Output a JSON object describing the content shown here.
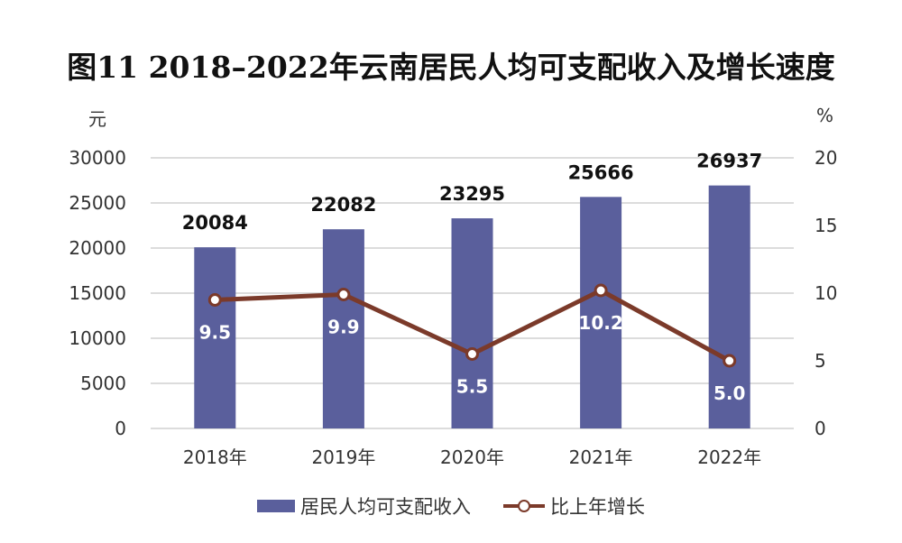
{
  "title": "图11  2018–2022年云南居民人均可支配收入及增长速度",
  "left_unit": "元",
  "right_unit": "%",
  "legend": {
    "bar_label": "居民人均可支配收入",
    "line_label": "比上年增长"
  },
  "colors": {
    "bar": "#5a5f9c",
    "line": "#7b3a2a",
    "grid": "#d0d0d0"
  },
  "chart_data": {
    "type": "bar+line",
    "title": "图11  2018–2022年云南居民人均可支配收入及增长速度",
    "categories": [
      "2018年",
      "2019年",
      "2020年",
      "2021年",
      "2022年"
    ],
    "series": [
      {
        "name": "居民人均可支配收入",
        "type": "bar",
        "axis": "left",
        "values": [
          20084,
          22082,
          23295,
          25666,
          26937
        ]
      },
      {
        "name": "比上年增长",
        "type": "line",
        "axis": "right",
        "values": [
          9.5,
          9.9,
          5.5,
          10.2,
          5.0
        ]
      }
    ],
    "bar_labels": [
      "20084",
      "22082",
      "23295",
      "25666",
      "26937"
    ],
    "line_labels": [
      "9.5",
      "9.9",
      "5.5",
      "10.2",
      "5.0"
    ],
    "ylabel_left": "元",
    "ylabel_right": "%",
    "ylim_left": [
      0,
      30000
    ],
    "ylim_right": [
      0,
      20
    ],
    "yticks_left": [
      "30000",
      "25000",
      "20000",
      "15000",
      "10000",
      "5000",
      "0"
    ],
    "yticks_right": [
      "20",
      "15",
      "10",
      "5",
      "0"
    ],
    "grid": true,
    "legend_position": "bottom"
  }
}
